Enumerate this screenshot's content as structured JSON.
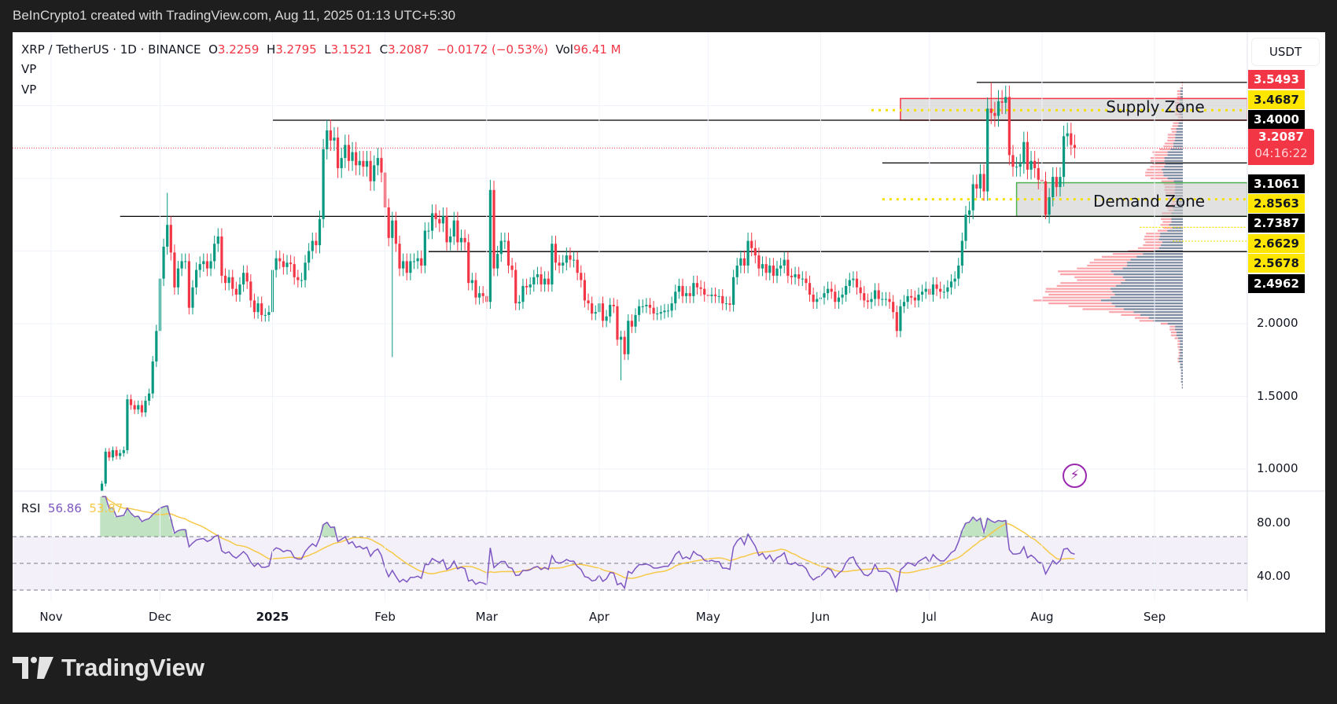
{
  "header": {
    "attribution": "BeInCrypto1 created with TradingView.com, Aug 11, 2025 01:13 UTC+5:30"
  },
  "legend": {
    "symbol": "XRP / TetherUS · 1D · BINANCE",
    "open_label": "O",
    "open": "3.2259",
    "high_label": "H",
    "high": "3.2795",
    "low_label": "L",
    "low": "3.1521",
    "close_label": "C",
    "close": "3.2087",
    "change": "−0.0172 (−0.53%)",
    "vol_label": "Vol",
    "vol": "96.41 M",
    "indicators": [
      "VP",
      "VP"
    ]
  },
  "currency_button": "USDT",
  "price_axis": {
    "ticks": [
      "2.0000",
      "1.5000",
      "1.0000"
    ]
  },
  "price_labels": [
    {
      "text": "3.5493",
      "bg": "#f23645",
      "fg": "#ffffff"
    },
    {
      "text": "3.4687",
      "bg": "#ffe600",
      "fg": "#131722"
    },
    {
      "text": "3.4000",
      "bg": "#000000",
      "fg": "#ffffff"
    },
    {
      "text": "3.2087",
      "bg": "#f23645",
      "fg": "#ffffff"
    },
    {
      "text": "3.1061",
      "bg": "#000000",
      "fg": "#ffffff"
    },
    {
      "text": "2.8563",
      "bg": "#ffe600",
      "fg": "#131722"
    },
    {
      "text": "2.7387",
      "bg": "#000000",
      "fg": "#ffffff"
    },
    {
      "text": "2.6629",
      "bg": "#ffe600",
      "fg": "#131722"
    },
    {
      "text": "2.5678",
      "bg": "#ffe600",
      "fg": "#131722"
    },
    {
      "text": "2.4962",
      "bg": "#000000",
      "fg": "#ffffff"
    }
  ],
  "countdown": "04:16:22",
  "time_axis": {
    "labels": [
      {
        "text": "Nov",
        "date": "2024-11-01"
      },
      {
        "text": "Dec",
        "date": "2024-12-01"
      },
      {
        "text": "2025",
        "date": "2025-01-01",
        "bold": true
      },
      {
        "text": "Feb",
        "date": "2025-02-01"
      },
      {
        "text": "Mar",
        "date": "2025-03-01"
      },
      {
        "text": "Apr",
        "date": "2025-04-01"
      },
      {
        "text": "May",
        "date": "2025-05-01"
      },
      {
        "text": "Jun",
        "date": "2025-06-01"
      },
      {
        "text": "Jul",
        "date": "2025-07-01"
      },
      {
        "text": "Aug",
        "date": "2025-08-01"
      },
      {
        "text": "Sep",
        "date": "2025-09-01"
      }
    ]
  },
  "zones": {
    "supply": {
      "label": "Supply Zone",
      "top": 3.5493,
      "bottom": 3.4,
      "mid": 3.4687,
      "start": "2025-06-23",
      "color": "#f23645"
    },
    "demand": {
      "label": "Demand Zone",
      "top": 2.97,
      "bottom": 2.7387,
      "mid": 2.8563,
      "start": "2025-07-25",
      "color": "#4caf50"
    }
  },
  "rsi": {
    "label": "RSI",
    "value": "56.86",
    "signal": "53.87",
    "color": "#7e57c2",
    "signal_color": "#f7c948",
    "ticks": [
      "80.00",
      "40.00"
    ],
    "upper": 70,
    "middle": 50,
    "lower": 30
  },
  "logo": {
    "text": "TradingView"
  },
  "colors": {
    "up": "#089981",
    "down": "#f23645"
  },
  "chart_data": {
    "type": "candlestick",
    "symbol": "XRPUSDT",
    "start_date": "2024-11-12",
    "ylim": [
      0.88,
      3.82
    ],
    "scale": "linear",
    "closes": [
      0.72,
      0.74,
      0.79,
      0.9,
      1.12,
      1.08,
      1.13,
      1.09,
      1.11,
      1.13,
      1.48,
      1.44,
      1.41,
      1.44,
      1.39,
      1.47,
      1.52,
      1.74,
      1.95,
      2.31,
      2.53,
      2.68,
      2.49,
      2.25,
      2.38,
      2.43,
      2.43,
      2.11,
      2.25,
      2.37,
      2.41,
      2.43,
      2.38,
      2.43,
      2.55,
      2.6,
      2.33,
      2.28,
      2.32,
      2.24,
      2.2,
      2.27,
      2.35,
      2.29,
      2.16,
      2.08,
      2.14,
      2.06,
      2.06,
      2.08,
      2.37,
      2.45,
      2.43,
      2.39,
      2.42,
      2.41,
      2.32,
      2.3,
      2.3,
      2.42,
      2.5,
      2.57,
      2.54,
      2.72,
      3.2,
      3.33,
      3.26,
      3.28,
      3.07,
      3.14,
      3.23,
      3.12,
      3.18,
      3.09,
      3.12,
      3.08,
      3.12,
      2.98,
      3.09,
      3.14,
      3.04,
      2.8,
      2.59,
      2.71,
      2.55,
      2.38,
      2.43,
      2.35,
      2.43,
      2.43,
      2.45,
      2.4,
      2.64,
      2.64,
      2.76,
      2.72,
      2.69,
      2.74,
      2.56,
      2.6,
      2.71,
      2.56,
      2.59,
      2.56,
      2.28,
      2.3,
      2.18,
      2.21,
      2.19,
      2.15,
      2.92,
      2.38,
      2.48,
      2.57,
      2.57,
      2.4,
      2.37,
      2.14,
      2.15,
      2.26,
      2.25,
      2.27,
      2.32,
      2.34,
      2.27,
      2.31,
      2.27,
      2.55,
      2.42,
      2.4,
      2.42,
      2.47,
      2.44,
      2.44,
      2.35,
      2.3,
      2.16,
      2.14,
      2.07,
      2.08,
      2.14,
      2.02,
      2.05,
      2.13,
      2.12,
      1.89,
      1.91,
      1.79,
      2.02,
      1.98,
      2.06,
      2.12,
      2.12,
      2.13,
      2.11,
      2.07,
      2.07,
      2.08,
      2.09,
      2.09,
      2.14,
      2.22,
      2.26,
      2.19,
      2.21,
      2.19,
      2.28,
      2.25,
      2.24,
      2.2,
      2.19,
      2.2,
      2.19,
      2.19,
      2.14,
      2.14,
      2.13,
      2.32,
      2.4,
      2.45,
      2.4,
      2.57,
      2.52,
      2.47,
      2.38,
      2.41,
      2.35,
      2.4,
      2.33,
      2.38,
      2.4,
      2.44,
      2.33,
      2.32,
      2.34,
      2.31,
      2.31,
      2.28,
      2.2,
      2.15,
      2.17,
      2.18,
      2.21,
      2.24,
      2.22,
      2.15,
      2.18,
      2.2,
      2.26,
      2.3,
      2.31,
      2.25,
      2.21,
      2.16,
      2.15,
      2.17,
      2.23,
      2.17,
      2.17,
      2.17,
      2.15,
      2.08,
      1.95,
      2.12,
      2.15,
      2.19,
      2.18,
      2.16,
      2.2,
      2.22,
      2.24,
      2.2,
      2.27,
      2.24,
      2.22,
      2.22,
      2.25,
      2.29,
      2.31,
      2.4,
      2.57,
      2.75,
      2.78,
      2.96,
      2.93,
      3.03,
      2.91,
      3.48,
      3.45,
      3.43,
      3.53,
      3.52,
      3.56,
      3.16,
      3.08,
      3.08,
      3.1,
      3.25,
      3.06,
      3.12,
      3.07,
      2.99,
      2.98,
      2.75,
      2.87,
      3.01,
      2.94,
      3.01,
      3.29,
      3.31,
      3.23,
      3.2087
    ],
    "extremes": [
      {
        "date": "2024-12-03",
        "high": 2.9
      },
      {
        "date": "2025-01-16",
        "high": 3.4
      },
      {
        "date": "2025-02-03",
        "low": 1.77
      },
      {
        "date": "2025-03-02",
        "high": 2.99
      },
      {
        "date": "2025-04-07",
        "low": 1.61
      },
      {
        "date": "2025-07-18",
        "high": 3.66
      },
      {
        "date": "2025-08-02",
        "low": 2.72
      }
    ],
    "levels": [
      {
        "price": 3.66,
        "start": "2025-07-14"
      },
      {
        "price": 3.4,
        "start": "2025-01-01"
      },
      {
        "price": 3.1061,
        "start": "2025-06-18"
      },
      {
        "price": 2.7387,
        "start": "2024-11-20"
      },
      {
        "price": 2.4962,
        "start": "2025-02-13"
      }
    ],
    "dotted_levels": [
      {
        "price": 3.4687,
        "start": "2025-06-15"
      },
      {
        "price": 2.8563,
        "start": "2025-06-18"
      },
      {
        "price": 2.6629,
        "start": "2025-08-28"
      },
      {
        "price": 2.5678,
        "start": "2025-09-06"
      }
    ],
    "last_price": 3.2087
  }
}
